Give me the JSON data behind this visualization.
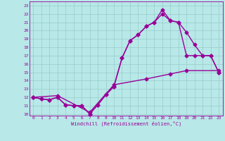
{
  "xlabel": "Windchill (Refroidissement éolien,°C)",
  "line_color": "#990099",
  "bg_color": "#b8e8e8",
  "grid_color": "#99cccc",
  "line1_x": [
    0,
    1,
    2,
    3,
    4,
    5,
    6,
    7,
    8,
    9,
    10,
    11,
    12,
    13,
    14,
    15,
    16,
    17,
    18,
    19,
    20,
    21,
    22,
    23
  ],
  "line1_y": [
    12,
    11.8,
    11.7,
    12.0,
    11.1,
    11.0,
    11.0,
    10.0,
    11.1,
    12.3,
    13.3,
    16.7,
    18.8,
    19.5,
    20.5,
    21.0,
    22.5,
    21.2,
    21.0,
    19.8,
    18.3,
    17.0,
    17.0,
    15.0
  ],
  "line2_x": [
    0,
    1,
    2,
    3,
    4,
    5,
    6,
    7,
    8,
    9,
    10,
    11,
    12,
    13,
    14,
    15,
    16,
    17,
    18,
    19,
    20,
    21,
    22,
    23
  ],
  "line2_y": [
    12,
    11.8,
    11.7,
    12.0,
    11.1,
    11.0,
    11.0,
    10.0,
    11.1,
    12.3,
    13.3,
    16.7,
    18.8,
    19.5,
    20.5,
    21.0,
    22.0,
    21.2,
    21.0,
    17.0,
    17.0,
    17.0,
    17.0,
    15.0
  ],
  "line3_x": [
    0,
    3,
    7,
    10,
    14,
    17,
    19,
    23
  ],
  "line3_y": [
    12,
    12.2,
    10.2,
    13.5,
    14.2,
    14.8,
    15.2,
    15.2
  ],
  "xlim": [
    -0.5,
    23.5
  ],
  "ylim": [
    9.8,
    23.5
  ],
  "xticks": [
    0,
    1,
    2,
    3,
    4,
    5,
    6,
    7,
    8,
    9,
    10,
    11,
    12,
    13,
    14,
    15,
    16,
    17,
    18,
    19,
    20,
    21,
    22,
    23
  ],
  "yticks": [
    10,
    11,
    12,
    13,
    14,
    15,
    16,
    17,
    18,
    19,
    20,
    21,
    22,
    23
  ],
  "markersize": 2.5,
  "linewidth": 1.0
}
